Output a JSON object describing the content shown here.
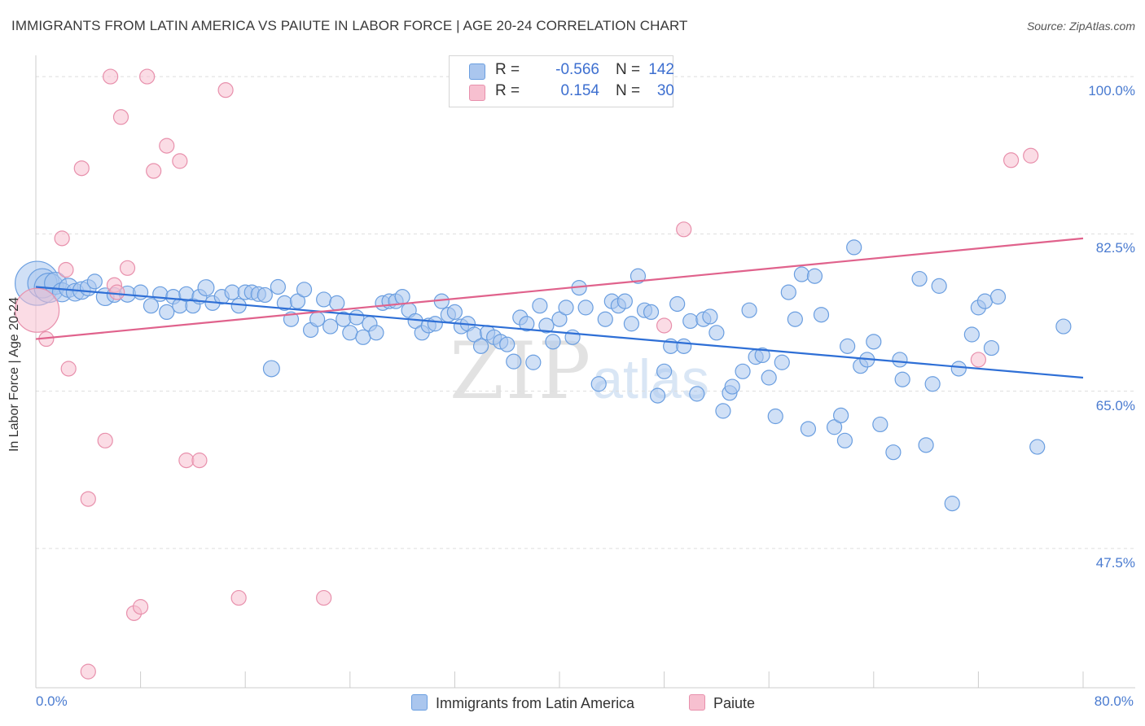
{
  "title": "IMMIGRANTS FROM LATIN AMERICA VS PAIUTE IN LABOR FORCE | AGE 20-24 CORRELATION CHART",
  "source": "Source: ZipAtlas.com",
  "watermark": {
    "zip": "ZIP",
    "atlas": "atlas"
  },
  "colors": {
    "blue_fill": "#aac6ee",
    "blue_stroke": "#6a9ee0",
    "blue_line": "#2e6fd6",
    "pink_fill": "#f7c0d0",
    "pink_stroke": "#e890ac",
    "pink_line": "#e0628c",
    "grid": "#dddddd",
    "tick_text": "#4a7bd0"
  },
  "legend": {
    "rows": [
      {
        "r_label": "R =",
        "r_value": "-0.566",
        "n_label": "N =",
        "n_value": "142"
      },
      {
        "r_label": "R =",
        "r_value": "0.154",
        "n_label": "N =",
        "n_value": "30"
      }
    ]
  },
  "bottom_legend": [
    "Immigrants from Latin America",
    "Paiute"
  ],
  "chart_data": {
    "type": "scatter",
    "title": "IMMIGRANTS FROM LATIN AMERICA VS PAIUTE IN LABOR FORCE | AGE 20-24 CORRELATION CHART",
    "xlabel": "",
    "ylabel": "In Labor Force | Age 20-24",
    "xlim": [
      0,
      80
    ],
    "ylim": [
      32,
      102
    ],
    "x_tick_labels": [
      "0.0%",
      "80.0%"
    ],
    "y_ticks": [
      47.5,
      65.0,
      82.5,
      100.0
    ],
    "y_tick_labels": [
      "47.5%",
      "65.0%",
      "82.5%",
      "100.0%"
    ],
    "grid": "horizontal dashed",
    "legend_placement": "top-center",
    "series": [
      {
        "name": "Immigrants from Latin America",
        "color": "#aac6ee",
        "R": -0.566,
        "N": 142,
        "trend": [
          [
            0,
            76.6
          ],
          [
            80,
            66.5
          ]
        ],
        "points": [
          [
            0.1,
            77,
            3
          ],
          [
            0.5,
            77,
            2
          ],
          [
            1,
            76.5,
            2
          ],
          [
            1.5,
            77,
            1.5
          ],
          [
            2,
            76,
            1.3
          ],
          [
            2.5,
            76.5,
            1.3
          ],
          [
            3,
            76,
            1.2
          ],
          [
            3.5,
            76.2,
            1.2
          ],
          [
            4,
            76.5,
            1.1
          ],
          [
            4.5,
            77.2,
            1
          ],
          [
            5.3,
            75.5,
            1.2
          ],
          [
            6,
            75.7,
            1
          ],
          [
            7,
            75.8,
            1.1
          ],
          [
            8,
            76,
            1
          ],
          [
            8.8,
            74.5,
            1
          ],
          [
            9.5,
            75.8,
            1
          ],
          [
            10,
            73.8,
            1
          ],
          [
            10.5,
            75.5,
            1
          ],
          [
            11,
            74.5,
            1
          ],
          [
            11.5,
            75.8,
            1
          ],
          [
            12,
            74.5,
            1
          ],
          [
            12.5,
            75.5,
            1
          ],
          [
            13,
            76.5,
            1.1
          ],
          [
            13.5,
            74.8,
            1
          ],
          [
            14.2,
            75.5,
            1
          ],
          [
            15,
            76,
            1
          ],
          [
            15.5,
            74.5,
            1
          ],
          [
            16,
            76,
            1
          ],
          [
            16.5,
            76,
            1
          ],
          [
            17,
            75.8,
            1
          ],
          [
            17.5,
            75.7,
            1
          ],
          [
            18,
            67.5,
            1.1
          ],
          [
            18.5,
            76.6,
            1
          ],
          [
            19,
            74.8,
            1
          ],
          [
            19.5,
            73,
            1
          ],
          [
            20,
            75,
            1
          ],
          [
            20.5,
            76.3,
            1
          ],
          [
            21,
            71.8,
            1
          ],
          [
            21.5,
            73,
            1
          ],
          [
            22,
            75.2,
            1
          ],
          [
            22.5,
            72.2,
            1
          ],
          [
            23,
            74.8,
            1
          ],
          [
            23.5,
            73,
            1
          ],
          [
            24,
            71.5,
            1
          ],
          [
            24.5,
            73.2,
            1
          ],
          [
            25,
            71,
            1
          ],
          [
            25.5,
            72.5,
            1
          ],
          [
            26,
            71.5,
            1
          ],
          [
            26.5,
            74.8,
            1
          ],
          [
            27,
            75,
            1
          ],
          [
            27.5,
            75,
            1
          ],
          [
            28,
            75.5,
            1
          ],
          [
            28.5,
            74,
            1
          ],
          [
            29,
            72.8,
            1
          ],
          [
            29.5,
            71.5,
            1
          ],
          [
            30,
            72.3,
            1
          ],
          [
            30.5,
            72.5,
            1
          ],
          [
            31,
            75,
            1
          ],
          [
            31.5,
            73.5,
            1
          ],
          [
            32,
            73.8,
            1
          ],
          [
            32.5,
            72.2,
            1
          ],
          [
            33,
            72.5,
            1
          ],
          [
            33.5,
            71.3,
            1
          ],
          [
            34,
            70,
            1
          ],
          [
            34.5,
            71.5,
            1
          ],
          [
            35,
            71,
            1
          ],
          [
            35.5,
            70.5,
            1
          ],
          [
            36,
            70.2,
            1
          ],
          [
            36.5,
            68.3,
            1
          ],
          [
            37,
            73.2,
            1
          ],
          [
            37.5,
            72.5,
            1
          ],
          [
            38,
            68.2,
            1
          ],
          [
            38.5,
            74.5,
            1
          ],
          [
            39,
            72.3,
            1
          ],
          [
            39.5,
            70.5,
            1
          ],
          [
            40,
            73,
            1
          ],
          [
            40.5,
            74.3,
            1
          ],
          [
            41,
            71,
            1
          ],
          [
            41.5,
            76.5,
            1
          ],
          [
            42,
            74.3,
            1
          ],
          [
            43,
            65.8,
            1
          ],
          [
            43.5,
            73,
            1
          ],
          [
            44,
            75,
            1
          ],
          [
            44.5,
            74.5,
            1
          ],
          [
            45,
            75,
            1
          ],
          [
            45.5,
            72.5,
            1
          ],
          [
            46,
            77.8,
            1
          ],
          [
            46.5,
            74,
            1
          ],
          [
            47,
            73.8,
            1
          ],
          [
            47.5,
            64.5,
            1
          ],
          [
            48,
            67.2,
            1
          ],
          [
            48.5,
            70,
            1
          ],
          [
            49,
            74.7,
            1
          ],
          [
            49.5,
            70,
            1
          ],
          [
            50,
            72.8,
            1
          ],
          [
            50.5,
            64.7,
            1
          ],
          [
            51,
            73,
            1
          ],
          [
            51.5,
            73.3,
            1
          ],
          [
            52,
            71.5,
            1
          ],
          [
            52.5,
            62.8,
            1
          ],
          [
            53,
            64.8,
            1
          ],
          [
            53.2,
            65.5,
            1
          ],
          [
            54,
            67.2,
            1
          ],
          [
            54.5,
            74,
            1
          ],
          [
            55,
            68.8,
            1
          ],
          [
            55.5,
            69,
            1
          ],
          [
            56,
            66.5,
            1
          ],
          [
            56.5,
            62.2,
            1
          ],
          [
            57,
            68.2,
            1
          ],
          [
            57.5,
            76,
            1
          ],
          [
            58,
            73,
            1
          ],
          [
            58.5,
            78,
            1
          ],
          [
            59,
            60.8,
            1
          ],
          [
            59.5,
            77.8,
            1
          ],
          [
            60,
            73.5,
            1
          ],
          [
            61,
            61,
            1
          ],
          [
            61.5,
            62.3,
            1
          ],
          [
            61.8,
            59.5,
            1
          ],
          [
            62,
            70,
            1
          ],
          [
            62.5,
            81,
            1
          ],
          [
            63,
            67.8,
            1
          ],
          [
            63.5,
            68.5,
            1
          ],
          [
            64,
            70.5,
            1
          ],
          [
            64.5,
            61.3,
            1
          ],
          [
            65.5,
            58.2,
            1
          ],
          [
            66,
            68.5,
            1
          ],
          [
            66.2,
            66.3,
            1
          ],
          [
            67.5,
            77.5,
            1
          ],
          [
            68,
            59,
            1
          ],
          [
            68.5,
            65.8,
            1
          ],
          [
            69,
            76.7,
            1
          ],
          [
            70,
            52.5,
            1
          ],
          [
            70.5,
            67.5,
            1
          ],
          [
            71.5,
            71.3,
            1
          ],
          [
            72,
            74.3,
            1
          ],
          [
            72.5,
            75,
            1
          ],
          [
            73,
            69.8,
            1
          ],
          [
            73.5,
            75.5,
            1
          ],
          [
            76.5,
            58.8,
            1
          ],
          [
            78.5,
            72.2,
            1
          ]
        ]
      },
      {
        "name": "Paiute",
        "color": "#f7c0d0",
        "R": 0.154,
        "N": 30,
        "trend": [
          [
            0,
            70.8
          ],
          [
            80,
            82
          ]
        ],
        "points": [
          [
            0.1,
            74,
            3
          ],
          [
            0.8,
            70.8,
            1
          ],
          [
            2,
            82,
            1
          ],
          [
            2.3,
            78.5,
            1
          ],
          [
            2.5,
            67.5,
            1
          ],
          [
            3.5,
            89.8,
            1
          ],
          [
            4,
            53,
            1
          ],
          [
            5.3,
            59.5,
            1
          ],
          [
            5.7,
            100,
            1
          ],
          [
            6,
            76.8,
            1
          ],
          [
            6.2,
            76,
            1
          ],
          [
            6.5,
            95.5,
            1
          ],
          [
            7,
            78.7,
            1
          ],
          [
            7.5,
            40.3,
            1
          ],
          [
            8,
            41,
            1
          ],
          [
            8.5,
            100,
            1
          ],
          [
            9,
            89.5,
            1
          ],
          [
            10,
            92.3,
            1
          ],
          [
            11,
            90.6,
            1
          ],
          [
            11.5,
            57.3,
            1
          ],
          [
            12.5,
            57.3,
            1
          ],
          [
            14.5,
            98.5,
            1
          ],
          [
            15.5,
            42,
            1
          ],
          [
            22,
            42,
            1
          ],
          [
            4,
            33.8,
            1
          ],
          [
            48,
            72.3,
            1
          ],
          [
            49.5,
            83,
            1
          ],
          [
            72,
            68.5,
            1
          ],
          [
            74.5,
            90.7,
            1
          ],
          [
            76,
            91.2,
            1
          ]
        ]
      }
    ]
  }
}
